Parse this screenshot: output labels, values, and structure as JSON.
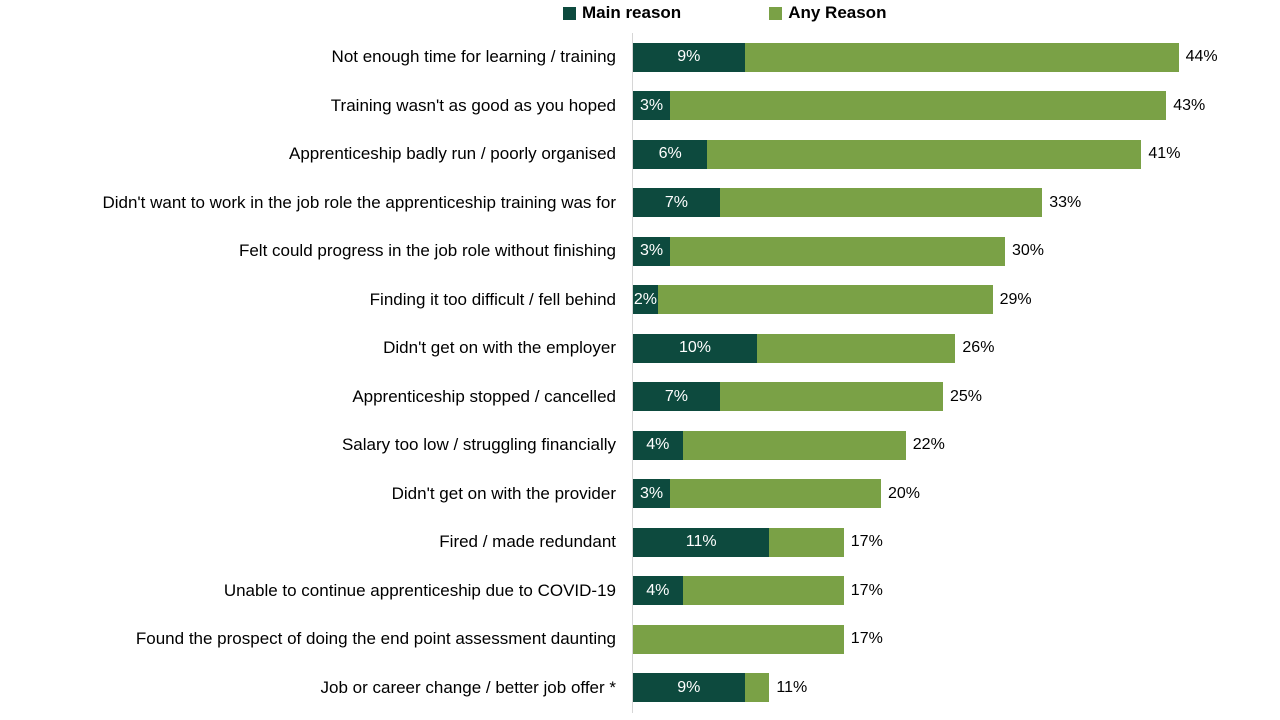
{
  "legend": {
    "items": [
      {
        "label": "Main reason",
        "color": "#0d4a3e"
      },
      {
        "label": "Any Reason",
        "color": "#7aa146"
      }
    ]
  },
  "chart_data": {
    "type": "bar",
    "orientation": "horizontal",
    "stacked": true,
    "unit": "%",
    "xlim": [
      0,
      50
    ],
    "grid": false,
    "legend_position": "top",
    "series_names": [
      "Main reason",
      "Any Reason"
    ],
    "colors": {
      "main": "#0d4a3e",
      "any": "#7aa146"
    },
    "categories": [
      "Not enough time for learning / training",
      "Training wasn't as good as you hoped",
      "Apprenticeship badly run / poorly organised",
      "Didn't want to work in the job role the apprenticeship training was for",
      "Felt could progress in the job role without finishing",
      "Finding it too difficult / fell behind",
      "Didn't get on with the employer",
      "Apprenticeship stopped / cancelled",
      "Salary too low / struggling financially",
      "Didn't get on with the provider",
      "Fired /  made redundant",
      "Unable to continue apprenticeship due to COVID-19",
      "Found the prospect of doing the end point assessment daunting",
      "Job or career change / better job offer *"
    ],
    "rows": [
      {
        "category": "Not enough time for learning / training",
        "main": 9,
        "any": 44
      },
      {
        "category": "Training wasn't as good as you hoped",
        "main": 3,
        "any": 43
      },
      {
        "category": "Apprenticeship badly run / poorly organised",
        "main": 6,
        "any": 41
      },
      {
        "category": "Didn't want to work in the job role the apprenticeship training was for",
        "main": 7,
        "any": 33
      },
      {
        "category": "Felt could progress in the job role without finishing",
        "main": 3,
        "any": 30
      },
      {
        "category": "Finding it too difficult / fell behind",
        "main": 2,
        "any": 29
      },
      {
        "category": "Didn't get on with the employer",
        "main": 10,
        "any": 26
      },
      {
        "category": "Apprenticeship stopped / cancelled",
        "main": 7,
        "any": 25
      },
      {
        "category": "Salary too low / struggling financially",
        "main": 4,
        "any": 22
      },
      {
        "category": "Didn't get on with the provider",
        "main": 3,
        "any": 20
      },
      {
        "category": "Fired /  made redundant",
        "main": 11,
        "any": 17
      },
      {
        "category": "Unable to continue apprenticeship due to COVID-19",
        "main": 4,
        "any": 17
      },
      {
        "category": "Found the prospect of doing the end point assessment daunting",
        "main": null,
        "any": 17
      },
      {
        "category": "Job or career change / better job offer *",
        "main": 9,
        "any": 11
      }
    ]
  }
}
